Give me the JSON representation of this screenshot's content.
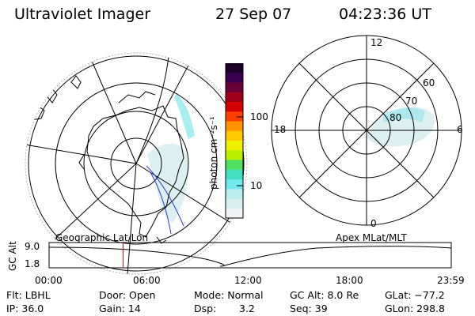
{
  "header": {
    "title": "Ultraviolet Imager",
    "date": "27 Sep 07",
    "time": "04:23:36 UT"
  },
  "colorbar": {
    "unit_label": "photon cm⁻²s⁻¹",
    "ticks": [
      "100",
      "10"
    ],
    "colors": [
      "#1a0026",
      "#3a0050",
      "#6a0038",
      "#a00018",
      "#d40000",
      "#ff4000",
      "#ff9400",
      "#ffc800",
      "#eef000",
      "#b8f000",
      "#50e060",
      "#40e0c0",
      "#70e8ec",
      "#b8eef0",
      "#d8f0f0",
      "#f0f4f4"
    ]
  },
  "polar_plot": {
    "mlt_labels": [
      "12",
      "18",
      "6",
      "0"
    ],
    "mlat_labels": [
      "60",
      "70",
      "80"
    ]
  },
  "timeline": {
    "left_label": "Geographic Lat/Lon",
    "right_label": "Apex MLat/MLT",
    "axis_title": "GC Alt",
    "y_ticks": [
      "9.0",
      "1.8"
    ],
    "x_ticks": [
      "00:00",
      "06:00",
      "12:00",
      "18:00",
      "23:59"
    ],
    "current_time_fraction": 0.184
  },
  "status": {
    "filter": "Flt: LBHL",
    "ip": "IP: 36.0",
    "door": "Door: Open",
    "gain": "Gain: 14",
    "mode": "Mode: Normal",
    "dsp_label": "Dsp:",
    "dsp_value": "3.2",
    "gc_alt": "GC Alt: 8.0 Re",
    "seq": "Seq: 39",
    "glat": "GLat: −77.2",
    "glon": "GLon: 298.8"
  }
}
